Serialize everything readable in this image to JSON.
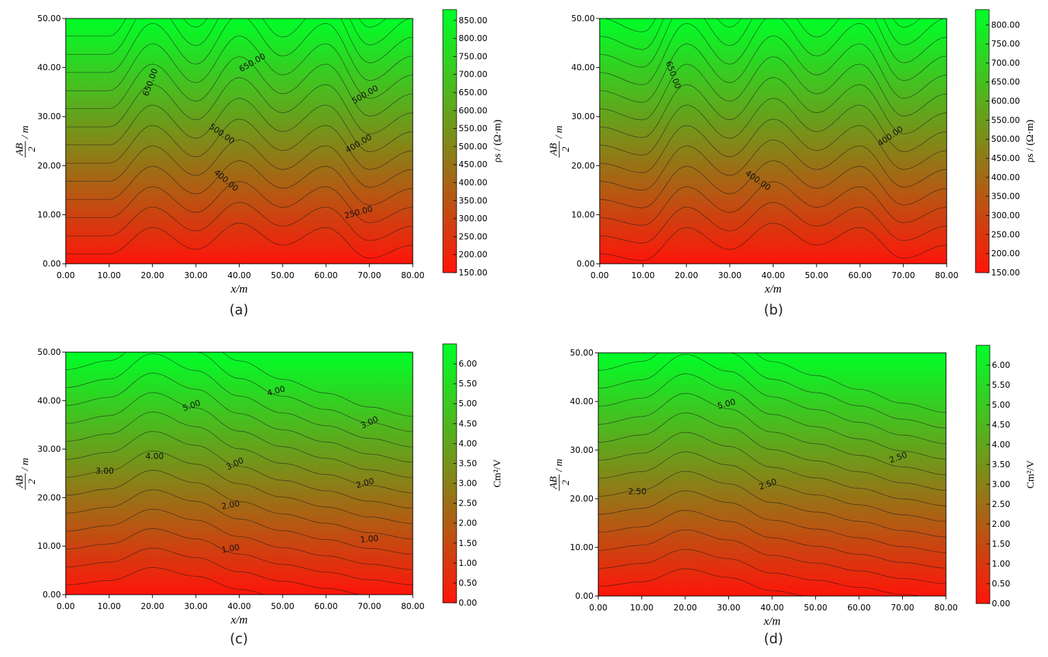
{
  "chart_data": [
    {
      "type": "heatmap",
      "id": "a",
      "caption": "(a)",
      "xlabel": "x/m",
      "ylabel": "AB/2 / m",
      "ylabel_num": "AB",
      "ylabel_den": "2",
      "ylabel_unit": "/ m",
      "colorbar_label": "ρs / (Ω·m)",
      "xlim": [
        0,
        80
      ],
      "ylim": [
        0,
        50
      ],
      "x_ticks": [
        "0.00",
        "10.00",
        "20.00",
        "30.00",
        "40.00",
        "50.00",
        "60.00",
        "70.00",
        "80.00"
      ],
      "y_ticks": [
        "0.00",
        "10.00",
        "20.00",
        "30.00",
        "40.00",
        "50.00"
      ],
      "colorbar_range": [
        150,
        880
      ],
      "colorbar_ticks": [
        {
          "value": 150,
          "label": "150.00"
        },
        {
          "value": 200,
          "label": "200.00"
        },
        {
          "value": 250,
          "label": "250.00"
        },
        {
          "value": 300,
          "label": "300.00"
        },
        {
          "value": 350,
          "label": "350.00"
        },
        {
          "value": 400,
          "label": "400.00"
        },
        {
          "value": 450,
          "label": "450.00"
        },
        {
          "value": 500,
          "label": "500.00"
        },
        {
          "value": 550,
          "label": "550.00"
        },
        {
          "value": 600,
          "label": "600.00"
        },
        {
          "value": 650,
          "label": "650.00"
        },
        {
          "value": 700,
          "label": "700.00"
        },
        {
          "value": 750,
          "label": "750.00"
        },
        {
          "value": 800,
          "label": "800.00"
        },
        {
          "value": 850,
          "label": "850.00"
        }
      ],
      "contour_labels": [
        {
          "text": "650.00",
          "x": 19.5,
          "y": 37,
          "angle": -70
        },
        {
          "text": "650.00",
          "x": 43,
          "y": 41,
          "angle": -30
        },
        {
          "text": "500.00",
          "x": 69,
          "y": 34.5,
          "angle": -30
        },
        {
          "text": "500.00",
          "x": 36,
          "y": 26.5,
          "angle": 35
        },
        {
          "text": "400.00",
          "x": 67.5,
          "y": 24.5,
          "angle": -30
        },
        {
          "text": "400.00",
          "x": 37,
          "y": 17,
          "angle": 40
        },
        {
          "text": "250.00",
          "x": 67.5,
          "y": 10.5,
          "angle": -15
        }
      ],
      "profile_x": [
        0,
        10,
        20,
        30,
        40,
        50,
        60,
        70,
        80
      ],
      "profile_shift": [
        0,
        0,
        12,
        2,
        14,
        4,
        12,
        -2,
        4
      ]
    },
    {
      "type": "heatmap",
      "id": "b",
      "caption": "(b)",
      "xlabel": "x/m",
      "ylabel": "AB/2 / m",
      "ylabel_num": "AB",
      "ylabel_den": "2",
      "ylabel_unit": "/ m",
      "colorbar_label": "ρs / (Ω·m)",
      "xlim": [
        0,
        80
      ],
      "ylim": [
        0,
        50
      ],
      "x_ticks": [
        "0.00",
        "10.00",
        "20.00",
        "30.00",
        "40.00",
        "50.00",
        "60.00",
        "70.00",
        "80.00"
      ],
      "y_ticks": [
        "0.00",
        "10.00",
        "20.00",
        "30.00",
        "40.00",
        "50.00"
      ],
      "colorbar_range": [
        150,
        840
      ],
      "colorbar_ticks": [
        {
          "value": 150,
          "label": "150.00"
        },
        {
          "value": 200,
          "label": "200.00"
        },
        {
          "value": 250,
          "label": "250.00"
        },
        {
          "value": 300,
          "label": "300.00"
        },
        {
          "value": 350,
          "label": "350.00"
        },
        {
          "value": 400,
          "label": "400.00"
        },
        {
          "value": 450,
          "label": "450.00"
        },
        {
          "value": 500,
          "label": "500.00"
        },
        {
          "value": 550,
          "label": "550.00"
        },
        {
          "value": 600,
          "label": "600.00"
        },
        {
          "value": 650,
          "label": "650.00"
        },
        {
          "value": 700,
          "label": "700.00"
        },
        {
          "value": 750,
          "label": "750.00"
        },
        {
          "value": 800,
          "label": "800.00"
        }
      ],
      "contour_labels": [
        {
          "text": "650.00",
          "x": 17,
          "y": 38.5,
          "angle": 70
        },
        {
          "text": "400.00",
          "x": 67,
          "y": 26,
          "angle": -35
        },
        {
          "text": "400.00",
          "x": 36.5,
          "y": 17,
          "angle": 35
        }
      ],
      "profile_x": [
        0,
        10,
        20,
        30,
        40,
        50,
        60,
        70,
        80
      ],
      "profile_shift": [
        0,
        -3,
        12,
        2,
        14,
        4,
        12,
        -2,
        4
      ]
    },
    {
      "type": "heatmap",
      "id": "c",
      "caption": "(c)",
      "xlabel": "x/m",
      "ylabel": "AB/2 / m",
      "ylabel_num": "AB",
      "ylabel_den": "2",
      "ylabel_unit": "/ m",
      "colorbar_label": "Cm²/V",
      "xlim": [
        0,
        80
      ],
      "ylim": [
        0,
        50
      ],
      "x_ticks": [
        "0.00",
        "10.00",
        "20.00",
        "30.00",
        "40.00",
        "50.00",
        "60.00",
        "70.00",
        "80.00"
      ],
      "y_ticks": [
        "0.00",
        "10.00",
        "20.00",
        "30.00",
        "40.00",
        "50.00"
      ],
      "colorbar_range": [
        0,
        6.5
      ],
      "colorbar_ticks": [
        {
          "value": 0,
          "label": "0.00"
        },
        {
          "value": 0.5,
          "label": "0.50"
        },
        {
          "value": 1,
          "label": "1.00"
        },
        {
          "value": 1.5,
          "label": "1.50"
        },
        {
          "value": 2,
          "label": "2.00"
        },
        {
          "value": 2.5,
          "label": "2.50"
        },
        {
          "value": 3,
          "label": "3.00"
        },
        {
          "value": 3.5,
          "label": "3.50"
        },
        {
          "value": 4,
          "label": "4.00"
        },
        {
          "value": 4.5,
          "label": "4.50"
        },
        {
          "value": 5,
          "label": "5.00"
        },
        {
          "value": 5.5,
          "label": "5.50"
        },
        {
          "value": 6,
          "label": "6.00"
        }
      ],
      "contour_labels": [
        {
          "text": "5.00",
          "x": 29,
          "y": 39,
          "angle": -20
        },
        {
          "text": "4.00",
          "x": 48.5,
          "y": 42,
          "angle": -15
        },
        {
          "text": "3.00",
          "x": 70,
          "y": 35.5,
          "angle": -25
        },
        {
          "text": "4.00",
          "x": 20.5,
          "y": 28.5,
          "angle": 0
        },
        {
          "text": "3.00",
          "x": 39,
          "y": 27,
          "angle": -25
        },
        {
          "text": "3.00",
          "x": 9,
          "y": 25.5,
          "angle": 0
        },
        {
          "text": "2.00",
          "x": 69,
          "y": 23,
          "angle": -15
        },
        {
          "text": "2.00",
          "x": 38,
          "y": 18.5,
          "angle": -10
        },
        {
          "text": "1.00",
          "x": 38,
          "y": 9.5,
          "angle": -10
        },
        {
          "text": "1.00",
          "x": 70,
          "y": 11.5,
          "angle": -5
        }
      ],
      "profile_x": [
        0,
        10,
        20,
        30,
        40,
        50,
        60,
        70,
        80
      ],
      "profile_shift": [
        0,
        2,
        8,
        4,
        -2,
        -6,
        -9,
        -12,
        -14
      ]
    },
    {
      "type": "heatmap",
      "id": "d",
      "caption": "(d)",
      "xlabel": "x/m",
      "ylabel": "AB/2 / m",
      "ylabel_num": "AB",
      "ylabel_den": "2",
      "ylabel_unit": "/ m",
      "colorbar_label": "Cm²/V",
      "xlim": [
        0,
        80
      ],
      "ylim": [
        0,
        50
      ],
      "x_ticks": [
        "0.00",
        "10.00",
        "20.00",
        "30.00",
        "40.00",
        "50.00",
        "60.00",
        "70.00",
        "80.00"
      ],
      "y_ticks": [
        "0.00",
        "10.00",
        "20.00",
        "30.00",
        "40.00",
        "50.00"
      ],
      "colorbar_range": [
        0,
        6.5
      ],
      "colorbar_ticks": [
        {
          "value": 0,
          "label": "0.00"
        },
        {
          "value": 0.5,
          "label": "0.50"
        },
        {
          "value": 1,
          "label": "1.00"
        },
        {
          "value": 1.5,
          "label": "1.50"
        },
        {
          "value": 2,
          "label": "2.00"
        },
        {
          "value": 2.5,
          "label": "2.50"
        },
        {
          "value": 3,
          "label": "3.00"
        },
        {
          "value": 3.5,
          "label": "3.50"
        },
        {
          "value": 4,
          "label": "4.00"
        },
        {
          "value": 4.5,
          "label": "4.50"
        },
        {
          "value": 5,
          "label": "5.00"
        },
        {
          "value": 5.5,
          "label": "5.50"
        },
        {
          "value": 6,
          "label": "6.00"
        }
      ],
      "contour_labels": [
        {
          "text": "5.00",
          "x": 29.5,
          "y": 39.5,
          "angle": -15
        },
        {
          "text": "2.50",
          "x": 69,
          "y": 28.5,
          "angle": -20
        },
        {
          "text": "2.50",
          "x": 9,
          "y": 21.5,
          "angle": 0
        },
        {
          "text": "2.50",
          "x": 39,
          "y": 23,
          "angle": -20
        }
      ],
      "profile_x": [
        0,
        10,
        20,
        30,
        40,
        50,
        60,
        70,
        80
      ],
      "profile_shift": [
        0,
        2,
        8,
        4,
        -2,
        -5,
        -8,
        -11,
        -13
      ]
    }
  ]
}
